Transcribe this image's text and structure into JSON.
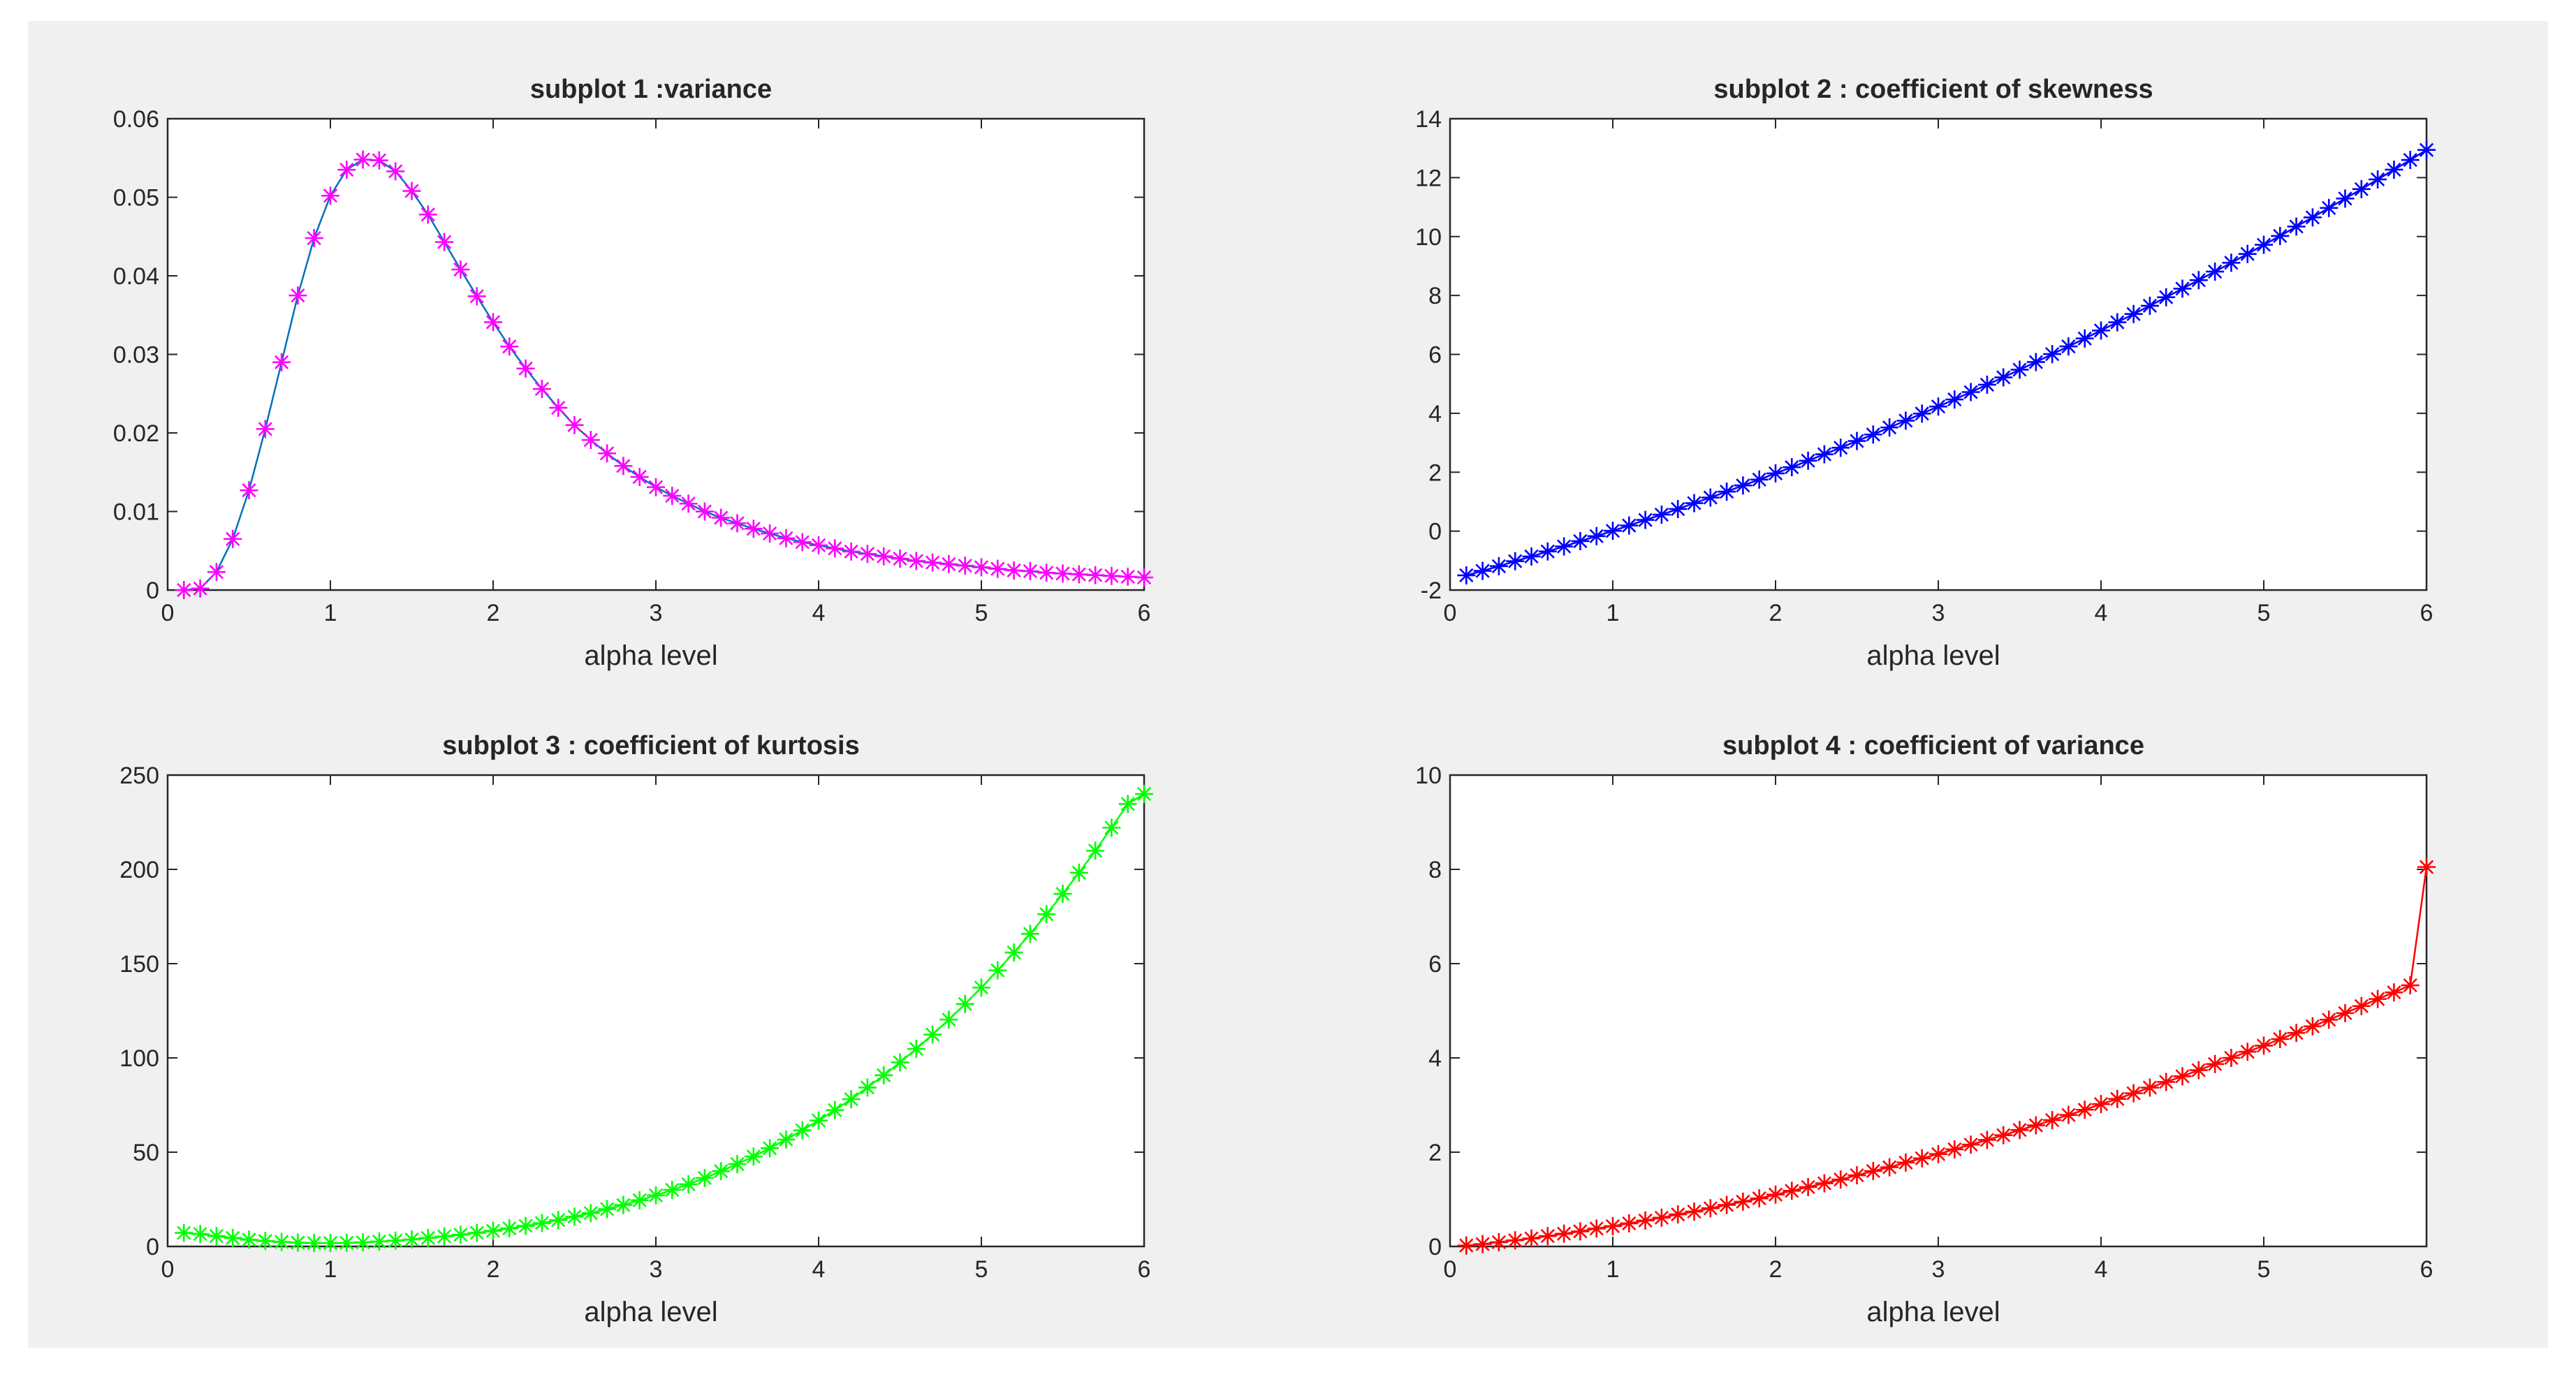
{
  "figure": {
    "background": "#f0f0f0",
    "axes_background": "#ffffff",
    "axis_color": "#262626"
  },
  "chart_data": [
    {
      "type": "line",
      "title": "subplot 1 :variance",
      "xlabel": "alpha level",
      "ylabel": "",
      "xlim": [
        0,
        6
      ],
      "ylim": [
        0,
        0.06
      ],
      "xticks": [
        0,
        1,
        2,
        3,
        4,
        5,
        6
      ],
      "yticks": [
        0,
        0.01,
        0.02,
        0.03,
        0.04,
        0.05,
        0.06
      ],
      "xtick_labels": [
        "0",
        "1",
        "2",
        "3",
        "4",
        "5",
        "6"
      ],
      "ytick_labels": [
        "0",
        "0.01",
        "0.02",
        "0.03",
        "0.04",
        "0.05",
        "0.06"
      ],
      "grid": false,
      "series": [
        {
          "line_color": "#0072bd",
          "marker": "asterisk",
          "marker_color": "#ff00ff",
          "x": [
            0.1,
            0.2,
            0.3,
            0.4,
            0.5,
            0.6,
            0.7,
            0.8,
            0.9,
            1.0,
            1.1,
            1.2,
            1.3,
            1.4,
            1.5,
            1.6,
            1.7,
            1.8,
            1.9,
            2.0,
            2.1,
            2.2,
            2.3,
            2.4,
            2.5,
            2.6,
            2.7,
            2.8,
            2.9,
            3.0,
            3.1,
            3.2,
            3.3,
            3.4,
            3.5,
            3.6,
            3.7,
            3.8,
            3.9,
            4.0,
            4.1,
            4.2,
            4.3,
            4.4,
            4.5,
            4.6,
            4.7,
            4.8,
            4.9,
            5.0,
            5.1,
            5.2,
            5.3,
            5.4,
            5.5,
            5.6,
            5.7,
            5.8,
            5.9,
            6.0
          ],
          "y": [
            0.0,
            0.0002,
            0.0023,
            0.0065,
            0.0127,
            0.0205,
            0.029,
            0.0375,
            0.0448,
            0.0502,
            0.0535,
            0.0548,
            0.0547,
            0.0533,
            0.0508,
            0.0478,
            0.0443,
            0.0408,
            0.0374,
            0.0341,
            0.031,
            0.0282,
            0.0256,
            0.0232,
            0.021,
            0.0191,
            0.0174,
            0.0158,
            0.0144,
            0.0131,
            0.012,
            0.011,
            0.01,
            0.0092,
            0.0085,
            0.0078,
            0.0072,
            0.0066,
            0.0061,
            0.0057,
            0.0053,
            0.0049,
            0.0046,
            0.0043,
            0.004,
            0.0037,
            0.0035,
            0.0033,
            0.0031,
            0.0029,
            0.0027,
            0.0025,
            0.0024,
            0.0022,
            0.0021,
            0.002,
            0.0019,
            0.0018,
            0.0017,
            0.0016
          ]
        }
      ]
    },
    {
      "type": "line",
      "title": "subplot 2 : coefficient of skewness",
      "xlabel": "alpha level",
      "ylabel": "",
      "xlim": [
        0,
        6
      ],
      "ylim": [
        -2,
        14
      ],
      "xticks": [
        0,
        1,
        2,
        3,
        4,
        5,
        6
      ],
      "yticks": [
        -2,
        0,
        2,
        4,
        6,
        8,
        10,
        12,
        14
      ],
      "xtick_labels": [
        "0",
        "1",
        "2",
        "3",
        "4",
        "5",
        "6"
      ],
      "ytick_labels": [
        "-2",
        "0",
        "2",
        "4",
        "6",
        "8",
        "10",
        "12",
        "14"
      ],
      "grid": false,
      "series": [
        {
          "line_color": "#0000ff",
          "marker": "asterisk",
          "marker_color": "#0000ff",
          "x": [
            0.1,
            0.2,
            0.3,
            0.4,
            0.5,
            0.6,
            0.7,
            0.8,
            0.9,
            1.0,
            1.1,
            1.2,
            1.3,
            1.4,
            1.5,
            1.6,
            1.7,
            1.8,
            1.9,
            2.0,
            2.1,
            2.2,
            2.3,
            2.4,
            2.5,
            2.6,
            2.7,
            2.8,
            2.9,
            3.0,
            3.1,
            3.2,
            3.3,
            3.4,
            3.5,
            3.6,
            3.7,
            3.8,
            3.9,
            4.0,
            4.1,
            4.2,
            4.3,
            4.4,
            4.5,
            4.6,
            4.7,
            4.8,
            4.9,
            5.0,
            5.1,
            5.2,
            5.3,
            5.4,
            5.5,
            5.6,
            5.7,
            5.8,
            5.9,
            6.0
          ],
          "y": [
            -1.5,
            -1.35,
            -1.19,
            -1.02,
            -0.86,
            -0.69,
            -0.52,
            -0.34,
            -0.17,
            0.01,
            0.19,
            0.38,
            0.56,
            0.75,
            0.95,
            1.14,
            1.34,
            1.55,
            1.75,
            1.96,
            2.17,
            2.39,
            2.61,
            2.83,
            3.06,
            3.28,
            3.52,
            3.75,
            3.99,
            4.23,
            4.47,
            4.72,
            4.97,
            5.22,
            5.48,
            5.74,
            6.01,
            6.27,
            6.54,
            6.81,
            7.09,
            7.37,
            7.65,
            7.94,
            8.23,
            8.52,
            8.81,
            9.11,
            9.41,
            9.72,
            10.02,
            10.34,
            10.65,
            10.97,
            11.29,
            11.61,
            11.94,
            12.27,
            12.6,
            12.94
          ]
        }
      ]
    },
    {
      "type": "line",
      "title": "subplot 3 : coefficient of kurtosis",
      "xlabel": "alpha level",
      "ylabel": "",
      "xlim": [
        0,
        6
      ],
      "ylim": [
        0,
        250
      ],
      "xticks": [
        0,
        1,
        2,
        3,
        4,
        5,
        6
      ],
      "yticks": [
        0,
        50,
        100,
        150,
        200,
        250
      ],
      "xtick_labels": [
        "0",
        "1",
        "2",
        "3",
        "4",
        "5",
        "6"
      ],
      "ytick_labels": [
        "0",
        "50",
        "100",
        "150",
        "200",
        "250"
      ],
      "grid": false,
      "series": [
        {
          "line_color": "#00ff00",
          "marker": "asterisk",
          "marker_color": "#00ff00",
          "x": [
            0.1,
            0.2,
            0.3,
            0.4,
            0.5,
            0.6,
            0.7,
            0.8,
            0.9,
            1.0,
            1.1,
            1.2,
            1.3,
            1.4,
            1.5,
            1.6,
            1.7,
            1.8,
            1.9,
            2.0,
            2.1,
            2.2,
            2.3,
            2.4,
            2.5,
            2.6,
            2.7,
            2.8,
            2.9,
            3.0,
            3.1,
            3.2,
            3.3,
            3.4,
            3.5,
            3.6,
            3.7,
            3.8,
            3.9,
            4.0,
            4.1,
            4.2,
            4.3,
            4.4,
            4.5,
            4.6,
            4.7,
            4.8,
            4.9,
            5.0,
            5.1,
            5.2,
            5.3,
            5.4,
            5.5,
            5.6,
            5.7,
            5.8,
            5.9,
            6.0
          ],
          "y": [
            7.2,
            6.6,
            5.5,
            4.5,
            3.6,
            2.9,
            2.4,
            2.0,
            1.8,
            1.8,
            1.9,
            2.2,
            2.6,
            3.1,
            3.7,
            4.5,
            5.3,
            6.2,
            7.2,
            8.3,
            9.6,
            10.9,
            12.4,
            14.0,
            15.8,
            17.7,
            19.8,
            22.0,
            24.5,
            27.1,
            30.0,
            33.0,
            36.3,
            39.9,
            43.7,
            47.7,
            52.1,
            56.7,
            61.6,
            66.8,
            72.3,
            78.1,
            84.3,
            90.8,
            97.6,
            104.8,
            112.4,
            120.3,
            128.6,
            137.3,
            146.4,
            155.9,
            165.8,
            176.2,
            187.0,
            198.2,
            209.9,
            222.1,
            234.7,
            240.0
          ]
        }
      ]
    },
    {
      "type": "line",
      "title": "subplot 4 : coefficient of variance",
      "xlabel": "alpha level",
      "ylabel": "",
      "xlim": [
        0,
        6
      ],
      "ylim": [
        0,
        10
      ],
      "xticks": [
        0,
        1,
        2,
        3,
        4,
        5,
        6
      ],
      "yticks": [
        0,
        2,
        4,
        6,
        8,
        10
      ],
      "xtick_labels": [
        "0",
        "1",
        "2",
        "3",
        "4",
        "5",
        "6"
      ],
      "ytick_labels": [
        "0",
        "2",
        "4",
        "6",
        "8",
        "10"
      ],
      "grid": false,
      "series": [
        {
          "line_color": "#ff0000",
          "marker": "asterisk",
          "marker_color": "#ff0000",
          "x": [
            0.1,
            0.2,
            0.3,
            0.4,
            0.5,
            0.6,
            0.7,
            0.8,
            0.9,
            1.0,
            1.1,
            1.2,
            1.3,
            1.4,
            1.5,
            1.6,
            1.7,
            1.8,
            1.9,
            2.0,
            2.1,
            2.2,
            2.3,
            2.4,
            2.5,
            2.6,
            2.7,
            2.8,
            2.9,
            3.0,
            3.1,
            3.2,
            3.3,
            3.4,
            3.5,
            3.6,
            3.7,
            3.8,
            3.9,
            4.0,
            4.1,
            4.2,
            4.3,
            4.4,
            4.5,
            4.6,
            4.7,
            4.8,
            4.9,
            5.0,
            5.1,
            5.2,
            5.3,
            5.4,
            5.5,
            5.6,
            5.7,
            5.8,
            5.9,
            6.0
          ],
          "y": [
            0.02,
            0.05,
            0.09,
            0.13,
            0.17,
            0.22,
            0.27,
            0.32,
            0.38,
            0.43,
            0.49,
            0.55,
            0.61,
            0.68,
            0.74,
            0.81,
            0.88,
            0.95,
            1.02,
            1.1,
            1.18,
            1.26,
            1.34,
            1.42,
            1.51,
            1.6,
            1.68,
            1.78,
            1.87,
            1.96,
            2.06,
            2.16,
            2.26,
            2.36,
            2.47,
            2.57,
            2.68,
            2.79,
            2.9,
            3.02,
            3.13,
            3.25,
            3.37,
            3.49,
            3.61,
            3.74,
            3.87,
            4.0,
            4.13,
            4.26,
            4.4,
            4.53,
            4.67,
            4.81,
            4.95,
            5.1,
            5.25,
            5.39,
            5.54,
            8.05
          ]
        }
      ]
    }
  ]
}
